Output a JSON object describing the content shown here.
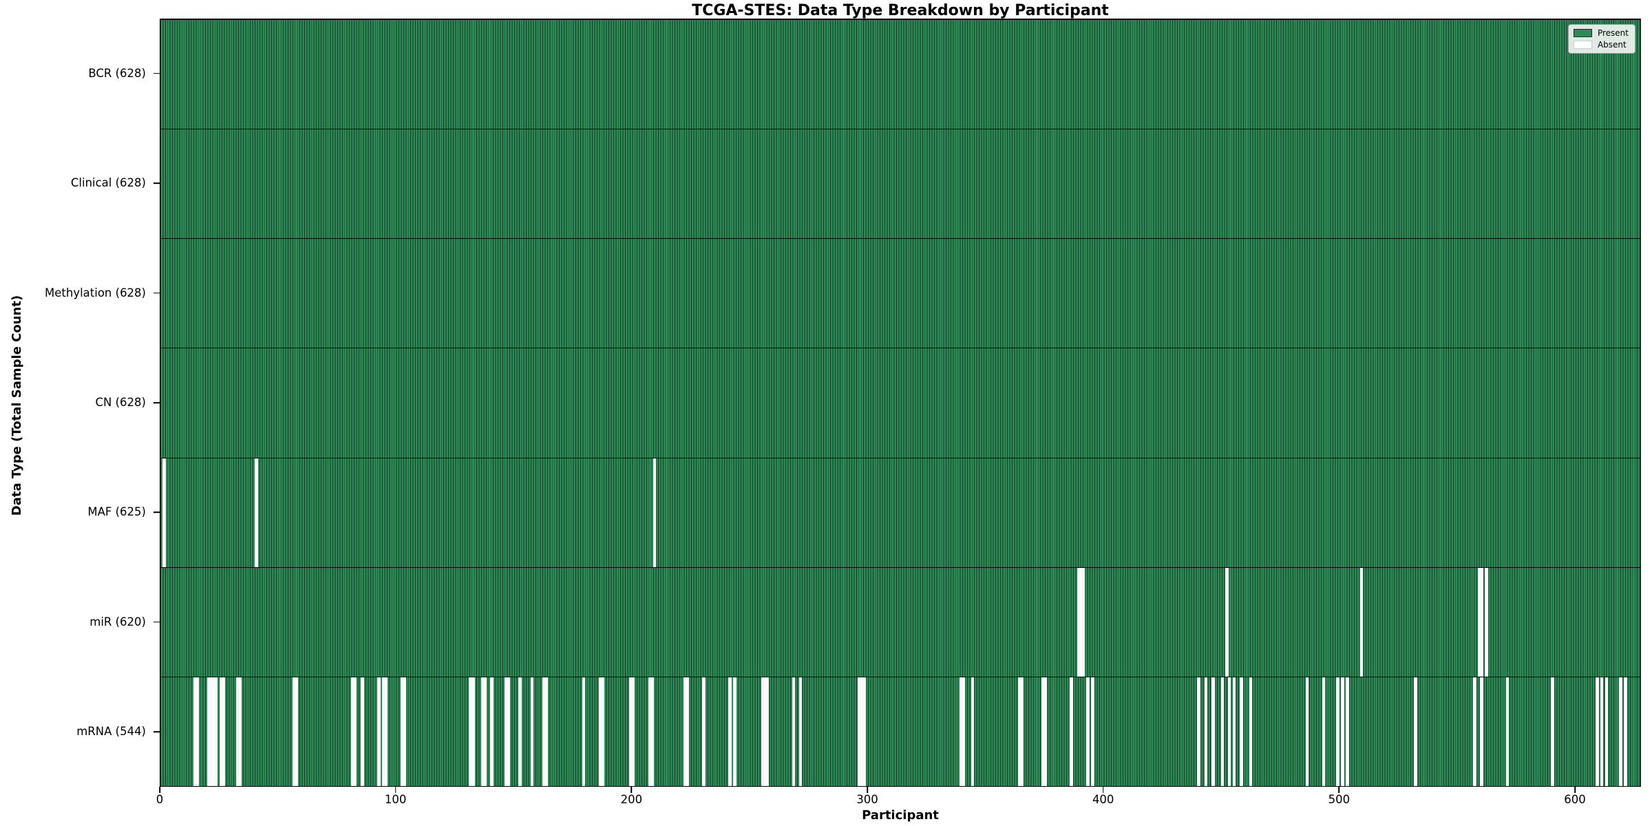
{
  "title": "TCGA-STES: Data Type Breakdown by Participant",
  "axes": {
    "xlabel": "Participant",
    "ylabel": "Data Type (Total Sample Count)",
    "x_ticks": [
      0,
      100,
      200,
      300,
      400,
      500,
      600
    ],
    "x_range": [
      0,
      628
    ]
  },
  "legend": {
    "present_label": "Present",
    "absent_label": "Absent",
    "position": "upper right"
  },
  "colors": {
    "present": "#2e8b57",
    "absent": "#ffffff",
    "bar_edge": "#0a2216",
    "spine": "#000000"
  },
  "chart_data": {
    "type": "heatmap",
    "description": "Presence/absence matrix: one green bar per participant per data-type row; white stripe = absent",
    "n_participants": 628,
    "x_range": [
      0,
      628
    ],
    "grid": false,
    "legend_position": "upper right",
    "rows": [
      {
        "name": "BCR",
        "label": "BCR (628)",
        "total": 628,
        "absent_participants": []
      },
      {
        "name": "Clinical",
        "label": "Clinical (628)",
        "total": 628,
        "absent_participants": []
      },
      {
        "name": "Methylation",
        "label": "Methylation (628)",
        "total": 628,
        "absent_participants": []
      },
      {
        "name": "CN",
        "label": "CN (628)",
        "total": 628,
        "absent_participants": []
      },
      {
        "name": "MAF",
        "label": "MAF (625)",
        "total": 625,
        "absent_participants": [
          1,
          40,
          209
        ]
      },
      {
        "name": "miR",
        "label": "miR (620)",
        "total": 620,
        "absent_participants": [
          389,
          390,
          391,
          452,
          509,
          559,
          560,
          562
        ]
      },
      {
        "name": "mRNA",
        "label": "mRNA (544)",
        "total": 544,
        "absent_participants": [
          14,
          15,
          20,
          21,
          22,
          23,
          25,
          26,
          32,
          33,
          56,
          57,
          81,
          82,
          85,
          92,
          94,
          95,
          102,
          103,
          131,
          132,
          136,
          137,
          140,
          146,
          147,
          152,
          157,
          162,
          163,
          179,
          186,
          187,
          199,
          200,
          207,
          208,
          222,
          223,
          230,
          241,
          243,
          255,
          256,
          257,
          268,
          271,
          296,
          297,
          298,
          339,
          340,
          344,
          364,
          365,
          374,
          375,
          386,
          393,
          395,
          440,
          443,
          446,
          450,
          453,
          455,
          458,
          462,
          486,
          493,
          499,
          501,
          503,
          532,
          557,
          560,
          571,
          590,
          609,
          611,
          613,
          619,
          621
        ]
      }
    ]
  }
}
